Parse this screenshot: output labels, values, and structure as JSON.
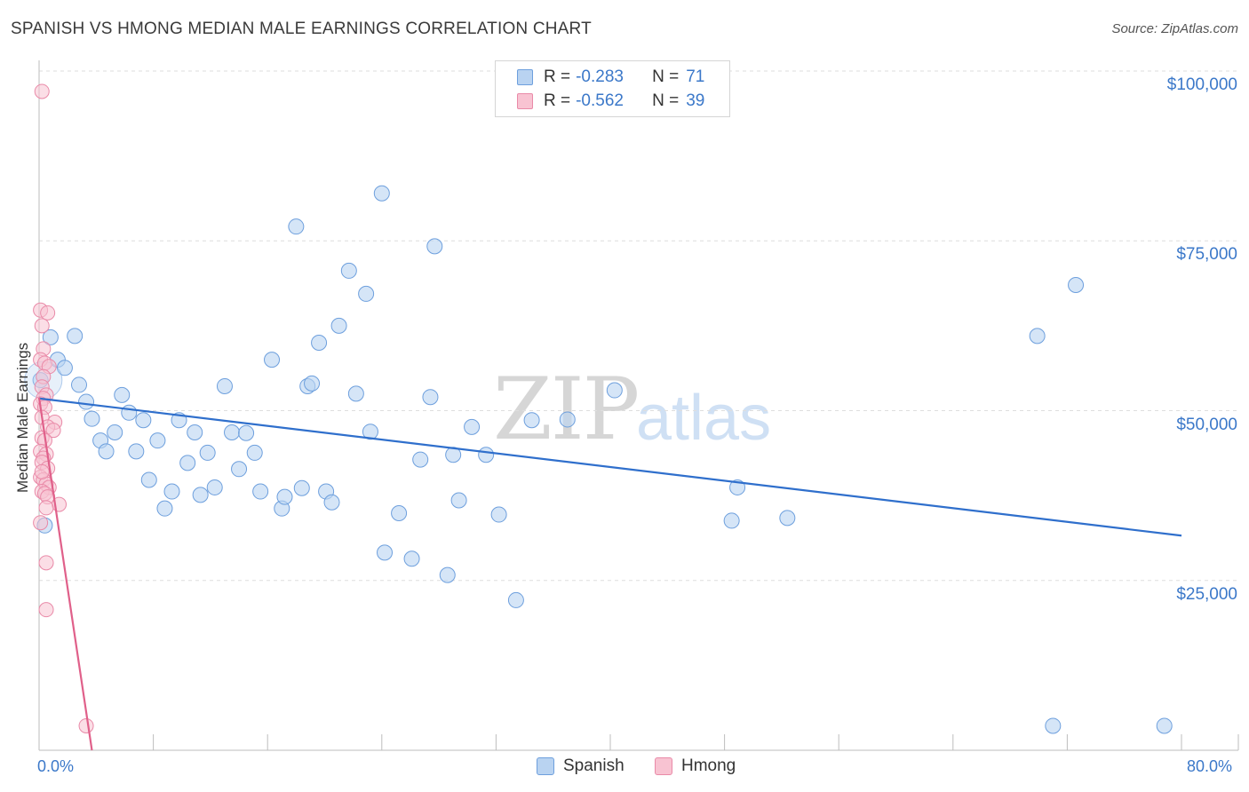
{
  "header": {
    "title": "SPANISH VS HMONG MEDIAN MALE EARNINGS CORRELATION CHART",
    "source": "Source: ZipAtlas.com"
  },
  "watermark": {
    "zip": "ZIP",
    "atlas": "atlas"
  },
  "legend_top": {
    "rows": [
      {
        "r_label": "R = ",
        "r_value": "-0.283",
        "n_label": "N = ",
        "n_value": "71",
        "color": "#a9c9f0"
      },
      {
        "r_label": "R = ",
        "r_value": "-0.562",
        "n_label": "N = ",
        "n_value": "39",
        "color": "#f6b6c9"
      }
    ]
  },
  "legend_bottom": {
    "items": [
      "Spanish",
      "Hmong"
    ]
  },
  "colors": {
    "spanish_fill": "#b9d3f1",
    "spanish_stroke": "#6d9fdd",
    "spanish_line": "#2f6fcc",
    "hmong_fill": "#f8c3d2",
    "hmong_stroke": "#e98aa8",
    "hmong_line": "#e0608a",
    "axis_text": "#3b78c9",
    "grid": "#dedede"
  },
  "chart_data": {
    "type": "scatter",
    "title": "SPANISH VS HMONG MEDIAN MALE EARNINGS CORRELATION CHART",
    "xlabel": "",
    "ylabel": "Median Male Earnings",
    "xlim": [
      0,
      80
    ],
    "ylim": [
      0,
      100000
    ],
    "x_tick_labels": [
      "0.0%",
      "80.0%"
    ],
    "y_ticks": [
      25000,
      50000,
      75000,
      100000
    ],
    "y_tick_labels": [
      "$25,000",
      "$50,000",
      "$75,000",
      "$100,000"
    ],
    "grid": true,
    "legend_position": "top-center",
    "series": [
      {
        "name": "Spanish",
        "r": -0.283,
        "n": 71,
        "trend": {
          "x": [
            0,
            80
          ],
          "y": [
            51800,
            31600
          ]
        },
        "points": [
          [
            0.1,
            54500
          ],
          [
            0.8,
            60800
          ],
          [
            1.3,
            57500
          ],
          [
            1.8,
            56300
          ],
          [
            2.5,
            61000
          ],
          [
            2.8,
            53800
          ],
          [
            3.3,
            51300
          ],
          [
            3.7,
            48800
          ],
          [
            4.3,
            45600
          ],
          [
            4.7,
            44000
          ],
          [
            5.3,
            46800
          ],
          [
            5.8,
            52300
          ],
          [
            6.3,
            49700
          ],
          [
            6.8,
            44000
          ],
          [
            7.3,
            48600
          ],
          [
            7.7,
            39800
          ],
          [
            8.3,
            45600
          ],
          [
            8.8,
            35600
          ],
          [
            9.3,
            38100
          ],
          [
            9.8,
            48600
          ],
          [
            10.4,
            42300
          ],
          [
            10.9,
            46800
          ],
          [
            11.3,
            37600
          ],
          [
            11.8,
            43800
          ],
          [
            12.3,
            38700
          ],
          [
            13.0,
            53600
          ],
          [
            13.5,
            46800
          ],
          [
            14.0,
            41400
          ],
          [
            14.5,
            46700
          ],
          [
            15.1,
            43800
          ],
          [
            15.5,
            38100
          ],
          [
            16.3,
            57500
          ],
          [
            17.0,
            35600
          ],
          [
            17.2,
            37300
          ],
          [
            18.0,
            77100
          ],
          [
            18.4,
            38600
          ],
          [
            18.8,
            53600
          ],
          [
            19.1,
            54000
          ],
          [
            19.6,
            60000
          ],
          [
            20.1,
            38100
          ],
          [
            20.5,
            36500
          ],
          [
            21.0,
            62500
          ],
          [
            21.7,
            70600
          ],
          [
            22.2,
            52500
          ],
          [
            22.9,
            67200
          ],
          [
            23.2,
            46900
          ],
          [
            24.0,
            82000
          ],
          [
            24.2,
            29100
          ],
          [
            25.2,
            34900
          ],
          [
            26.1,
            28200
          ],
          [
            26.7,
            42800
          ],
          [
            27.4,
            52000
          ],
          [
            27.7,
            74200
          ],
          [
            28.6,
            25800
          ],
          [
            29.0,
            43500
          ],
          [
            29.4,
            36800
          ],
          [
            30.3,
            47600
          ],
          [
            31.3,
            43500
          ],
          [
            32.2,
            34700
          ],
          [
            33.4,
            22100
          ],
          [
            34.5,
            48600
          ],
          [
            37.0,
            48700
          ],
          [
            40.3,
            53000
          ],
          [
            48.5,
            33800
          ],
          [
            48.9,
            38700
          ],
          [
            52.4,
            34200
          ],
          [
            69.9,
            61000
          ],
          [
            71.0,
            3600
          ],
          [
            72.6,
            68500
          ],
          [
            78.8,
            3600
          ],
          [
            0.4,
            33100
          ]
        ]
      },
      {
        "name": "Hmong",
        "r": -0.562,
        "n": 39,
        "trend": {
          "x": [
            0,
            3.7
          ],
          "y": [
            51900,
            0
          ]
        },
        "points": [
          [
            0.2,
            97000
          ],
          [
            0.1,
            64800
          ],
          [
            0.6,
            64400
          ],
          [
            0.2,
            62500
          ],
          [
            0.3,
            59100
          ],
          [
            0.1,
            57500
          ],
          [
            0.4,
            57000
          ],
          [
            0.7,
            56500
          ],
          [
            0.3,
            55000
          ],
          [
            0.2,
            53500
          ],
          [
            0.5,
            52300
          ],
          [
            0.3,
            51800
          ],
          [
            0.1,
            51000
          ],
          [
            0.4,
            50500
          ],
          [
            0.2,
            49000
          ],
          [
            1.1,
            48300
          ],
          [
            0.6,
            47600
          ],
          [
            1.0,
            47100
          ],
          [
            0.2,
            46000
          ],
          [
            0.4,
            45600
          ],
          [
            0.1,
            44000
          ],
          [
            0.5,
            43600
          ],
          [
            0.3,
            43000
          ],
          [
            0.2,
            42400
          ],
          [
            0.6,
            41500
          ],
          [
            0.1,
            40200
          ],
          [
            0.3,
            39800
          ],
          [
            0.5,
            39200
          ],
          [
            0.7,
            38700
          ],
          [
            0.2,
            38100
          ],
          [
            0.4,
            37800
          ],
          [
            0.6,
            37300
          ],
          [
            1.4,
            36200
          ],
          [
            0.5,
            35700
          ],
          [
            0.1,
            33500
          ],
          [
            0.5,
            27600
          ],
          [
            0.5,
            20700
          ],
          [
            3.3,
            3600
          ],
          [
            0.2,
            41000
          ]
        ]
      }
    ]
  }
}
